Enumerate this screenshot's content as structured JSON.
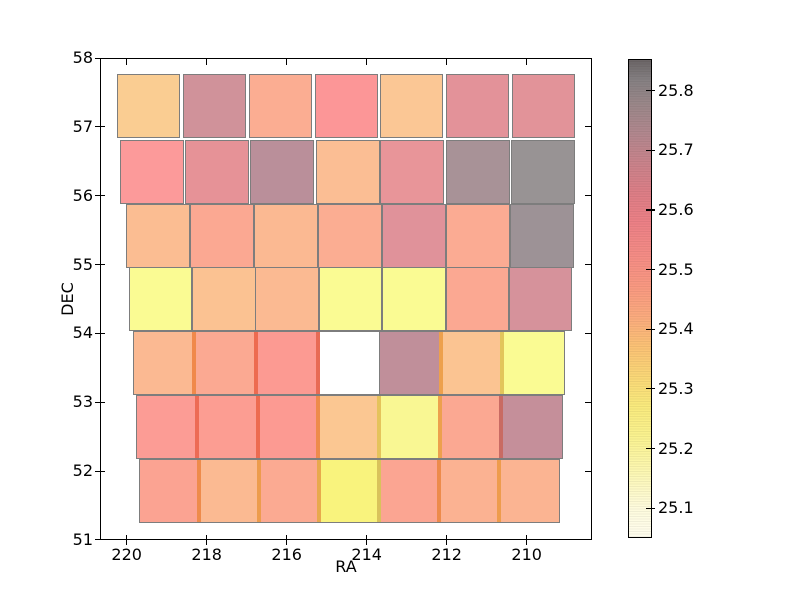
{
  "figure": {
    "background": "#ffffff"
  },
  "chart_data": {
    "type": "heatmap",
    "title": "",
    "xlabel": "RA",
    "ylabel": "DEC",
    "x_tick_labels": [
      "220",
      "218",
      "216",
      "214",
      "212",
      "210"
    ],
    "x_tick_values": [
      220,
      218,
      216,
      214,
      212,
      210
    ],
    "y_tick_labels": [
      "58",
      "57",
      "56",
      "55",
      "54",
      "53",
      "52",
      "51"
    ],
    "y_tick_values": [
      58,
      57,
      56,
      55,
      54,
      53,
      52,
      51
    ],
    "x_axis": {
      "min": 208.4,
      "max": 220.7,
      "reversed": true
    },
    "y_axis": {
      "min": 51,
      "max": 58
    },
    "grid": false,
    "legend": "colorbar-right",
    "field_dec_size": 0.93,
    "fields": [
      {
        "ra": 219.46,
        "dec": 57.3,
        "rs": 1.575,
        "mag": 25.31,
        "color": "#facd92"
      },
      {
        "ra": 217.81,
        "dec": 57.3,
        "rs": 1.575,
        "mag": 25.65,
        "color": "#d0929a"
      },
      {
        "ra": 216.16,
        "dec": 57.3,
        "rs": 1.575,
        "mag": 25.4,
        "color": "#fbad92"
      },
      {
        "ra": 214.51,
        "dec": 57.3,
        "rs": 1.575,
        "mag": 25.51,
        "color": "#fc9697"
      },
      {
        "ra": 212.87,
        "dec": 57.3,
        "rs": 1.575,
        "mag": 25.32,
        "color": "#fbc795"
      },
      {
        "ra": 211.22,
        "dec": 57.3,
        "rs": 1.575,
        "mag": 25.59,
        "color": "#e39299"
      },
      {
        "ra": 209.57,
        "dec": 57.3,
        "rs": 1.575,
        "mag": 25.6,
        "color": "#e29399"
      },
      {
        "ra": 219.37,
        "dec": 56.34,
        "rs": 1.6,
        "mag": 25.5,
        "color": "#fc9a9a"
      },
      {
        "ra": 217.74,
        "dec": 56.34,
        "rs": 1.6,
        "mag": 25.58,
        "color": "#e69297"
      },
      {
        "ra": 216.11,
        "dec": 56.34,
        "rs": 1.6,
        "mag": 25.7,
        "color": "#ba8f9a"
      },
      {
        "ra": 214.48,
        "dec": 56.34,
        "rs": 1.6,
        "mag": 25.34,
        "color": "#fbbe94"
      },
      {
        "ra": 212.86,
        "dec": 56.34,
        "rs": 1.6,
        "mag": 25.56,
        "color": "#e89599"
      },
      {
        "ra": 211.23,
        "dec": 56.34,
        "rs": 1.6,
        "mag": 25.75,
        "color": "#a89297"
      },
      {
        "ra": 209.6,
        "dec": 56.34,
        "rs": 1.6,
        "mag": 25.79,
        "color": "#989394"
      },
      {
        "ra": 219.22,
        "dec": 55.41,
        "rs": 1.6,
        "mag": 25.35,
        "color": "#fbbd92"
      },
      {
        "ra": 217.62,
        "dec": 55.41,
        "rs": 1.6,
        "mag": 25.42,
        "color": "#fba892"
      },
      {
        "ra": 216.02,
        "dec": 55.41,
        "rs": 1.6,
        "mag": 25.36,
        "color": "#fbb992"
      },
      {
        "ra": 214.42,
        "dec": 55.41,
        "rs": 1.6,
        "mag": 25.4,
        "color": "#fbad92"
      },
      {
        "ra": 212.82,
        "dec": 55.41,
        "rs": 1.6,
        "mag": 25.61,
        "color": "#e0929a"
      },
      {
        "ra": 211.22,
        "dec": 55.41,
        "rs": 1.6,
        "mag": 25.41,
        "color": "#fbab93"
      },
      {
        "ra": 209.62,
        "dec": 55.41,
        "rs": 1.6,
        "mag": 25.78,
        "color": "#9d9296"
      },
      {
        "ra": 219.16,
        "dec": 54.5,
        "rs": 1.585,
        "mag": 25.23,
        "color": "#fafb93"
      },
      {
        "ra": 217.57,
        "dec": 54.5,
        "rs": 1.585,
        "mag": 25.33,
        "color": "#fbc292"
      },
      {
        "ra": 215.99,
        "dec": 54.5,
        "rs": 1.585,
        "mag": 25.36,
        "color": "#fbba92"
      },
      {
        "ra": 214.4,
        "dec": 54.5,
        "rs": 1.585,
        "mag": 25.23,
        "color": "#fafb93"
      },
      {
        "ra": 212.82,
        "dec": 54.5,
        "rs": 1.585,
        "mag": 25.23,
        "color": "#fafb93"
      },
      {
        "ra": 211.23,
        "dec": 54.5,
        "rs": 1.585,
        "mag": 25.42,
        "color": "#fba892"
      },
      {
        "ra": 209.65,
        "dec": 54.5,
        "rs": 1.585,
        "mag": 25.64,
        "color": "#d6929b"
      },
      {
        "ra": 219.06,
        "dec": 53.57,
        "rs": 1.575,
        "mag": 25.36,
        "color": "#fbb992",
        "sep": "#f0894b"
      },
      {
        "ra": 217.52,
        "dec": 53.57,
        "rs": 1.575,
        "mag": 25.41,
        "color": "#fba992",
        "sep": "#ed6b50"
      },
      {
        "ra": 215.98,
        "dec": 53.57,
        "rs": 1.575,
        "mag": 25.46,
        "color": "#fc9a92",
        "sep": "#e86b55"
      },
      {
        "ra": 214.44,
        "dec": 53.57,
        "rs": 1.575,
        "mag": 25.05,
        "color": "#ffffff"
      },
      {
        "ra": 212.9,
        "dec": 53.57,
        "rs": 1.575,
        "mag": 25.68,
        "color": "#c08f9a",
        "sep": "#eda04d"
      },
      {
        "ra": 211.36,
        "dec": 53.57,
        "rs": 1.575,
        "mag": 25.33,
        "color": "#fbc492",
        "sep": "#e2c55b"
      },
      {
        "ra": 209.82,
        "dec": 53.57,
        "rs": 1.575,
        "mag": 25.23,
        "color": "#fafb93"
      },
      {
        "ra": 218.99,
        "dec": 52.64,
        "rs": 1.55,
        "mag": 25.47,
        "color": "#fc9c95",
        "sep": "#ed6b55"
      },
      {
        "ra": 217.47,
        "dec": 52.64,
        "rs": 1.55,
        "mag": 25.45,
        "color": "#fc9d92",
        "sep": "#ed6b50"
      },
      {
        "ra": 215.95,
        "dec": 52.64,
        "rs": 1.55,
        "mag": 25.46,
        "color": "#fc9a92",
        "sep": "#ee8b4b"
      },
      {
        "ra": 214.44,
        "dec": 52.64,
        "rs": 1.55,
        "mag": 25.32,
        "color": "#fbc792",
        "sep": "#e5c35b"
      },
      {
        "ra": 212.92,
        "dec": 52.64,
        "rs": 1.55,
        "mag": 25.22,
        "color": "#f9f793",
        "sep": "#eda04d"
      },
      {
        "ra": 211.4,
        "dec": 52.64,
        "rs": 1.55,
        "mag": 25.42,
        "color": "#fba892",
        "sep": "#c96b63"
      },
      {
        "ra": 209.88,
        "dec": 52.64,
        "rs": 1.55,
        "mag": 25.67,
        "color": "#c58f9a"
      },
      {
        "ra": 218.93,
        "dec": 51.71,
        "rs": 1.525,
        "mag": 25.43,
        "color": "#fba392",
        "sep": "#ee8b4b"
      },
      {
        "ra": 217.43,
        "dec": 51.71,
        "rs": 1.525,
        "mag": 25.36,
        "color": "#fbba92",
        "sep": "#ed9c4d"
      },
      {
        "ra": 215.93,
        "dec": 51.71,
        "rs": 1.525,
        "mag": 25.41,
        "color": "#fbaa92",
        "sep": "#e8a94d"
      },
      {
        "ra": 214.43,
        "dec": 51.71,
        "rs": 1.525,
        "mag": 25.18,
        "color": "#f9f37d",
        "sep": "#d9c25b"
      },
      {
        "ra": 212.93,
        "dec": 51.71,
        "rs": 1.525,
        "mag": 25.42,
        "color": "#fba592",
        "sep": "#ed8b4b"
      },
      {
        "ra": 211.43,
        "dec": 51.71,
        "rs": 1.525,
        "mag": 25.38,
        "color": "#fbb292",
        "sep": "#ee9c4d"
      },
      {
        "ra": 209.93,
        "dec": 51.71,
        "rs": 1.525,
        "mag": 25.38,
        "color": "#fbb492"
      }
    ],
    "colorbar": {
      "vmin": 25.05,
      "vmax": 25.853,
      "tick_labels": [
        "25.8",
        "25.7",
        "25.6",
        "25.5",
        "25.4",
        "25.3",
        "25.2",
        "25.1"
      ],
      "tick_values": [
        25.8,
        25.7,
        25.6,
        25.5,
        25.4,
        25.3,
        25.2,
        25.1
      ],
      "gradient": [
        {
          "v": 25.05,
          "c": "#fffdee"
        },
        {
          "v": 25.1,
          "c": "#fefbdc"
        },
        {
          "v": 25.16,
          "c": "#fcf7b2"
        },
        {
          "v": 25.22,
          "c": "#faf28f"
        },
        {
          "v": 25.27,
          "c": "#f9ea7d"
        },
        {
          "v": 25.32,
          "c": "#fad777"
        },
        {
          "v": 25.37,
          "c": "#fbc275"
        },
        {
          "v": 25.42,
          "c": "#fbab7e"
        },
        {
          "v": 25.47,
          "c": "#f99981"
        },
        {
          "v": 25.52,
          "c": "#f58d85"
        },
        {
          "v": 25.58,
          "c": "#ec8086"
        },
        {
          "v": 25.63,
          "c": "#dc7e86"
        },
        {
          "v": 25.68,
          "c": "#c9838b"
        },
        {
          "v": 25.73,
          "c": "#b1878e"
        },
        {
          "v": 25.78,
          "c": "#9a8789"
        },
        {
          "v": 25.82,
          "c": "#858082"
        },
        {
          "v": 25.853,
          "c": "#6b6566"
        }
      ]
    }
  }
}
